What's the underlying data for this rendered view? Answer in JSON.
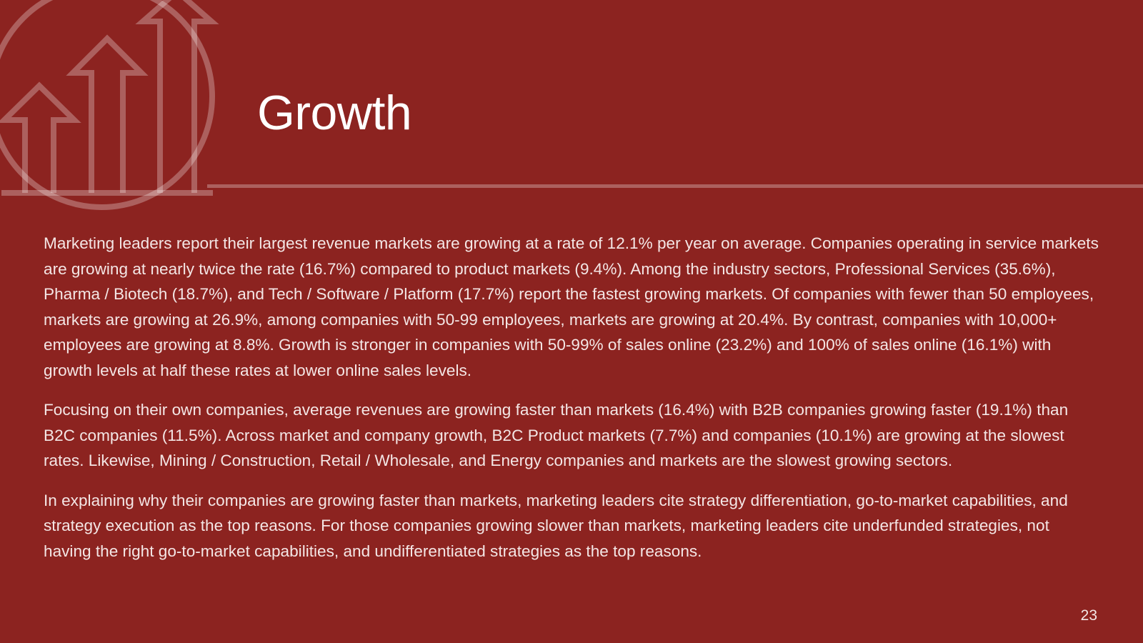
{
  "slide": {
    "title": "Growth",
    "paragraphs": [
      "Marketing leaders report their largest revenue markets are growing at a rate of 12.1% per year on average. Companies operating in service markets are growing at nearly twice the rate (16.7%) compared to product markets (9.4%). Among the industry sectors, Professional Services (35.6%), Pharma / Biotech (18.7%), and Tech / Software / Platform (17.7%) report the fastest growing markets. Of companies with fewer than 50 employees, markets are growing at 26.9%, among companies with 50-99 employees, markets are growing at 20.4%. By contrast, companies with 10,000+ employees are growing at 8.8%. Growth is stronger in companies with 50-99% of sales online (23.2%) and 100% of sales online (16.1%) with growth levels at half these rates at lower online sales levels.",
      "Focusing on their own companies, average revenues are growing faster than markets (16.4%) with B2B companies growing faster (19.1%) than B2C companies (11.5%). Across market and company growth, B2C Product markets (7.7%) and companies (10.1%) are growing at the slowest rates. Likewise, Mining / Construction, Retail / Wholesale, and Energy companies and markets are the slowest growing sectors.",
      "In explaining why their companies are growing faster than markets, marketing leaders cite strategy differentiation, go-to-market capabilities, and strategy execution as the top reasons. For those companies growing slower than markets, marketing leaders cite underfunded strategies, not having the right go-to-market capabilities, and undifferentiated strategies as the top reasons."
    ],
    "page_number": "23"
  },
  "icons": {
    "growth_graphic": "growth-arrows-icon"
  },
  "colors": {
    "background": "#8c2320",
    "text": "#ffffff",
    "graphic": "rgba(255,255,255,0.28)"
  }
}
